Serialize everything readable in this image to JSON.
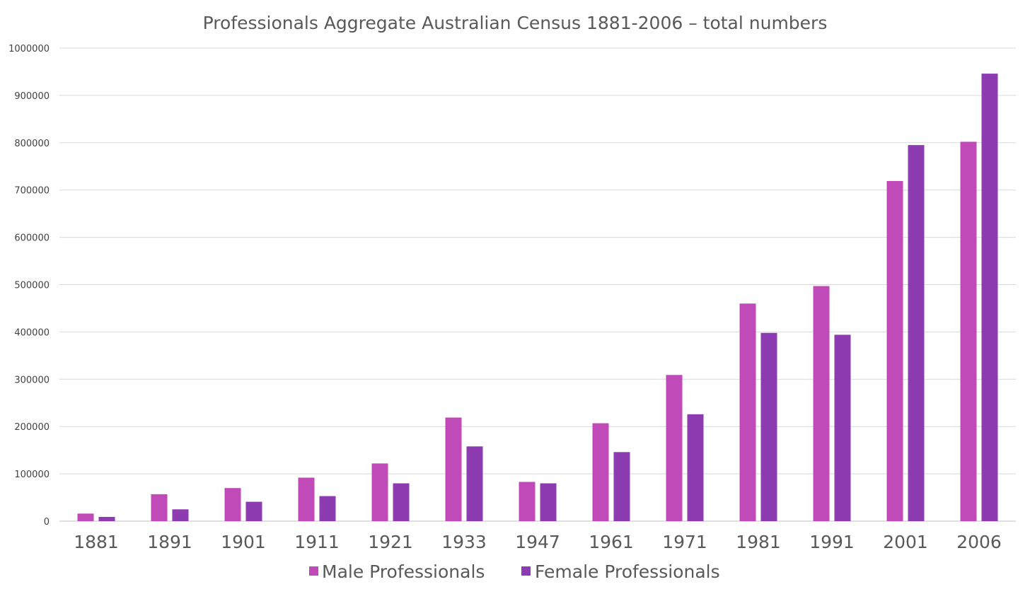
{
  "chart_data": {
    "type": "bar",
    "title": "Professionals Aggregate Australian Census 1881-2006 – total numbers",
    "xlabel": "",
    "ylabel": "",
    "categories": [
      "1881",
      "1891",
      "1901",
      "1911",
      "1921",
      "1933",
      "1947",
      "1961",
      "1971",
      "1981",
      "1991",
      "2001",
      "2006"
    ],
    "series": [
      {
        "name": "Male Professionals",
        "color": "#c04ab8",
        "values": [
          16000,
          57000,
          70000,
          92000,
          122000,
          219000,
          83000,
          207000,
          309000,
          460000,
          497000,
          719000,
          802000
        ]
      },
      {
        "name": "Female Professionals",
        "color": "#8c3bb0",
        "values": [
          9000,
          25000,
          41000,
          53000,
          80000,
          158000,
          80000,
          146000,
          226000,
          398000,
          394000,
          795000,
          946000
        ]
      }
    ],
    "ylim": [
      0,
      1000000
    ],
    "yticks": [
      "0",
      "100000",
      "200000",
      "300000",
      "400000",
      "500000",
      "600000",
      "700000",
      "800000",
      "900000",
      "1000000"
    ],
    "grid": true,
    "legend_position": "bottom"
  }
}
